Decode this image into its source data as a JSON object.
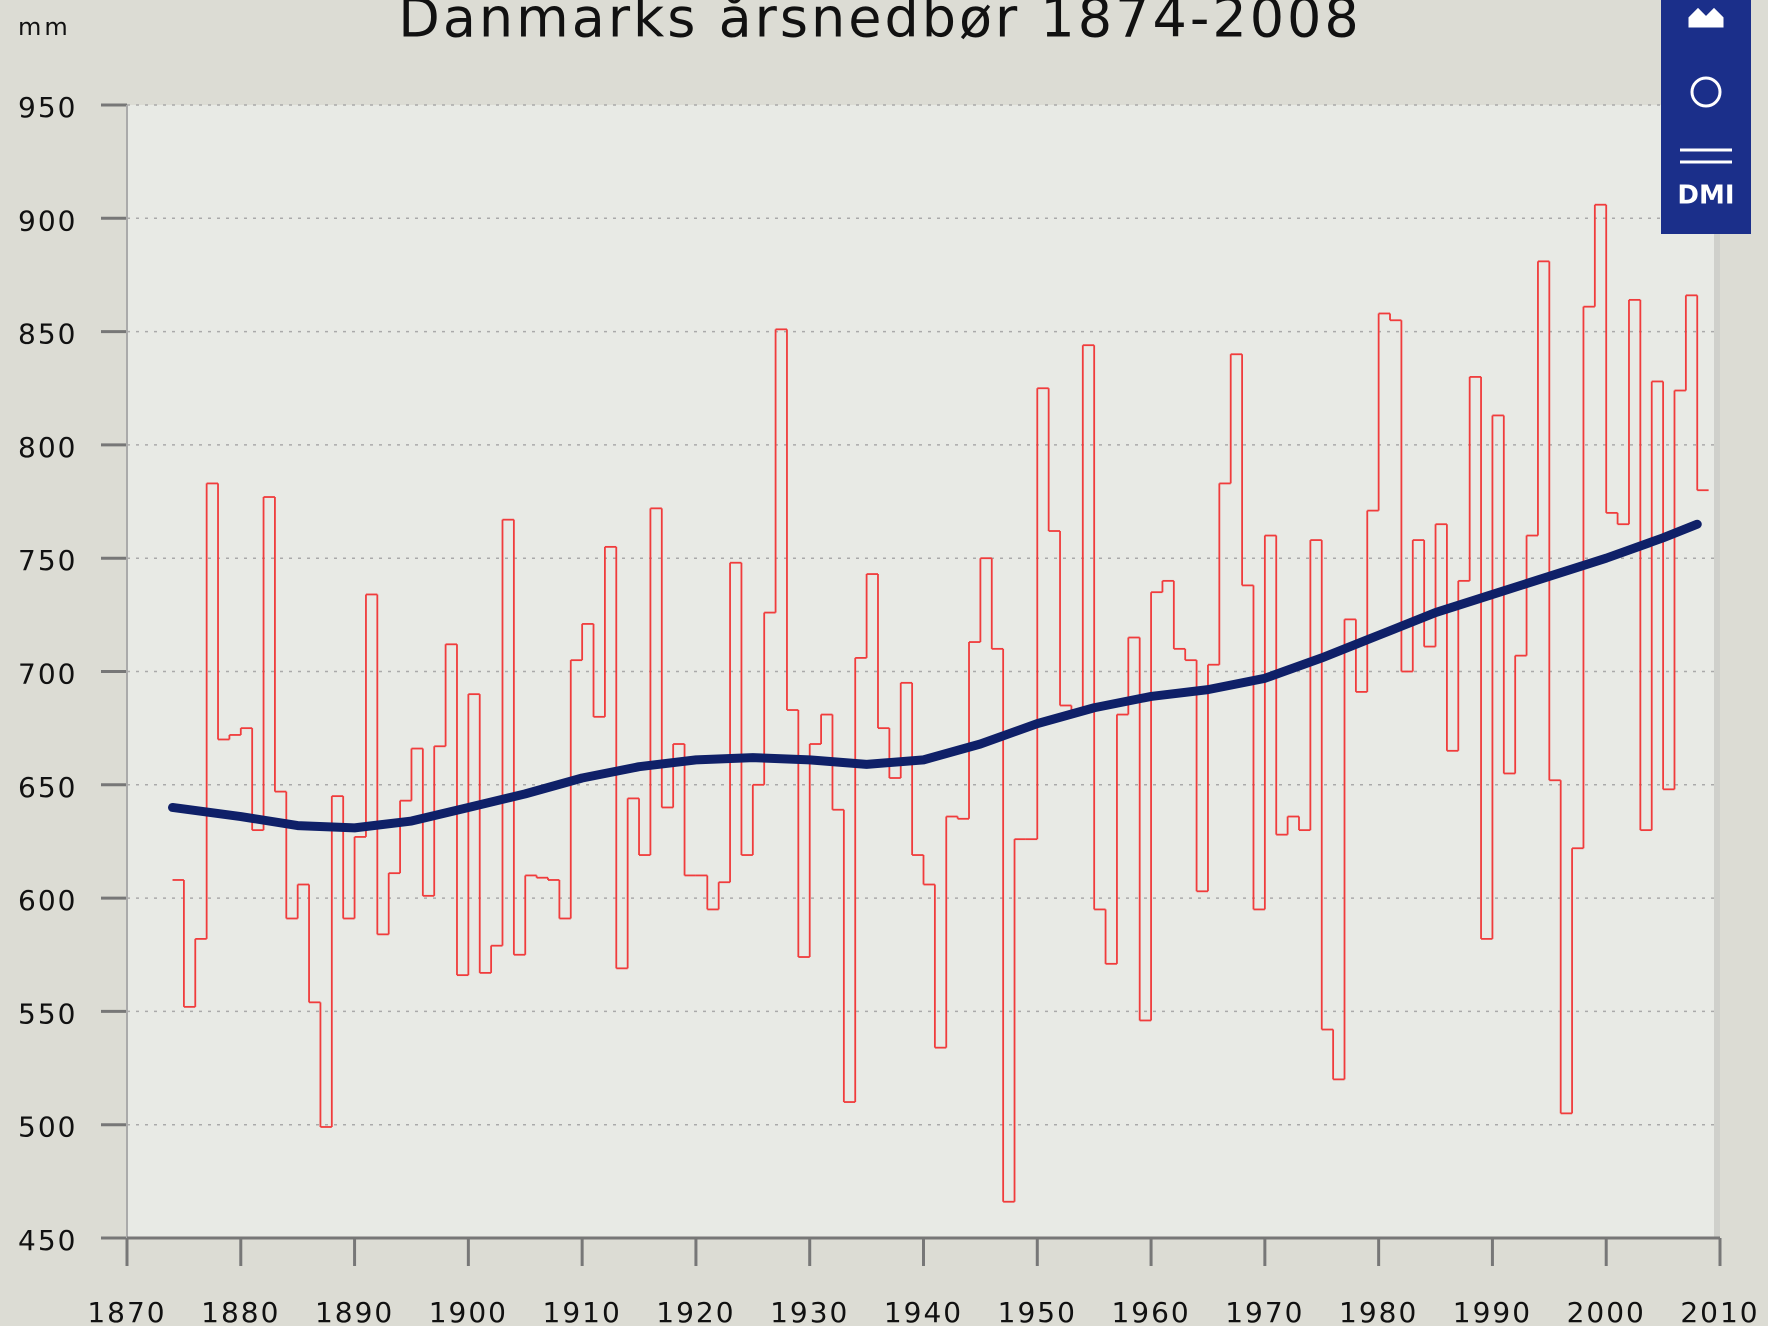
{
  "chart_data": {
    "type": "step",
    "title": "Danmarks årsnedbør 1874-2008",
    "y_label": "mm",
    "logo_text": "DMI",
    "x": [
      1874,
      1875,
      1876,
      1877,
      1878,
      1879,
      1880,
      1881,
      1882,
      1883,
      1884,
      1885,
      1886,
      1887,
      1888,
      1889,
      1890,
      1891,
      1892,
      1893,
      1894,
      1895,
      1896,
      1897,
      1898,
      1899,
      1900,
      1901,
      1902,
      1903,
      1904,
      1905,
      1906,
      1907,
      1908,
      1909,
      1910,
      1911,
      1912,
      1913,
      1914,
      1915,
      1916,
      1917,
      1918,
      1919,
      1920,
      1921,
      1922,
      1923,
      1924,
      1925,
      1926,
      1927,
      1928,
      1929,
      1930,
      1931,
      1932,
      1933,
      1934,
      1935,
      1936,
      1937,
      1938,
      1939,
      1940,
      1941,
      1942,
      1943,
      1944,
      1945,
      1946,
      1947,
      1948,
      1949,
      1950,
      1951,
      1952,
      1953,
      1954,
      1955,
      1956,
      1957,
      1958,
      1959,
      1960,
      1961,
      1962,
      1963,
      1964,
      1965,
      1966,
      1967,
      1968,
      1969,
      1970,
      1971,
      1972,
      1973,
      1974,
      1975,
      1976,
      1977,
      1978,
      1979,
      1980,
      1981,
      1982,
      1983,
      1984,
      1985,
      1986,
      1987,
      1988,
      1989,
      1990,
      1991,
      1992,
      1993,
      1994,
      1995,
      1996,
      1997,
      1998,
      1999,
      2000,
      2001,
      2002,
      2003,
      2004,
      2005,
      2006,
      2007,
      2008
    ],
    "series": [
      {
        "color": "#f03c3c",
        "values": [
          608,
          552,
          582,
          783,
          670,
          672,
          675,
          630,
          777,
          647,
          591,
          606,
          554,
          499,
          645,
          591,
          627,
          734,
          584,
          611,
          643,
          666,
          601,
          667,
          712,
          566,
          690,
          567,
          579,
          767,
          575,
          610,
          609,
          608,
          591,
          705,
          721,
          680,
          755,
          569,
          644,
          619,
          772,
          640,
          668,
          610,
          610,
          595,
          607,
          748,
          619,
          650,
          726,
          851,
          683,
          574,
          668,
          681,
          639,
          510,
          706,
          743,
          675,
          653,
          695,
          619,
          606,
          534,
          636,
          635,
          713,
          750,
          710,
          466,
          626,
          626,
          825,
          762,
          685,
          683,
          844,
          595,
          571,
          681,
          715,
          546,
          735,
          740,
          710,
          705,
          603,
          703,
          783,
          840,
          738,
          595,
          760,
          628,
          636,
          630,
          758,
          542,
          520,
          723,
          691,
          771,
          858,
          855,
          700,
          758,
          711,
          765,
          665,
          740,
          830,
          582,
          813,
          655,
          707,
          760,
          881,
          652,
          505,
          622,
          861,
          906,
          770,
          765,
          864,
          630,
          828,
          648,
          824,
          866,
          780
        ]
      },
      {
        "color": "#0f2068",
        "x": [
          1874,
          1880,
          1885,
          1890,
          1895,
          1900,
          1905,
          1910,
          1915,
          1920,
          1925,
          1930,
          1935,
          1940,
          1945,
          1950,
          1955,
          1960,
          1965,
          1970,
          1975,
          1980,
          1985,
          1990,
          1995,
          2000,
          2005,
          2008
        ],
        "values": [
          640,
          636,
          632,
          631,
          634,
          640,
          646,
          653,
          658,
          661,
          662,
          661,
          659,
          661,
          668,
          677,
          684,
          689,
          692,
          697,
          706,
          716,
          726,
          734,
          742,
          750,
          759,
          765
        ]
      }
    ],
    "xlim": [
      1870,
      2010
    ],
    "xticks": [
      1870,
      1880,
      1890,
      1900,
      1910,
      1920,
      1930,
      1940,
      1950,
      1960,
      1970,
      1980,
      1990,
      2000,
      2010
    ],
    "ylim": [
      450,
      950
    ],
    "yticks": [
      450,
      500,
      550,
      600,
      650,
      700,
      750,
      800,
      850,
      900,
      950
    ],
    "grid": true
  }
}
